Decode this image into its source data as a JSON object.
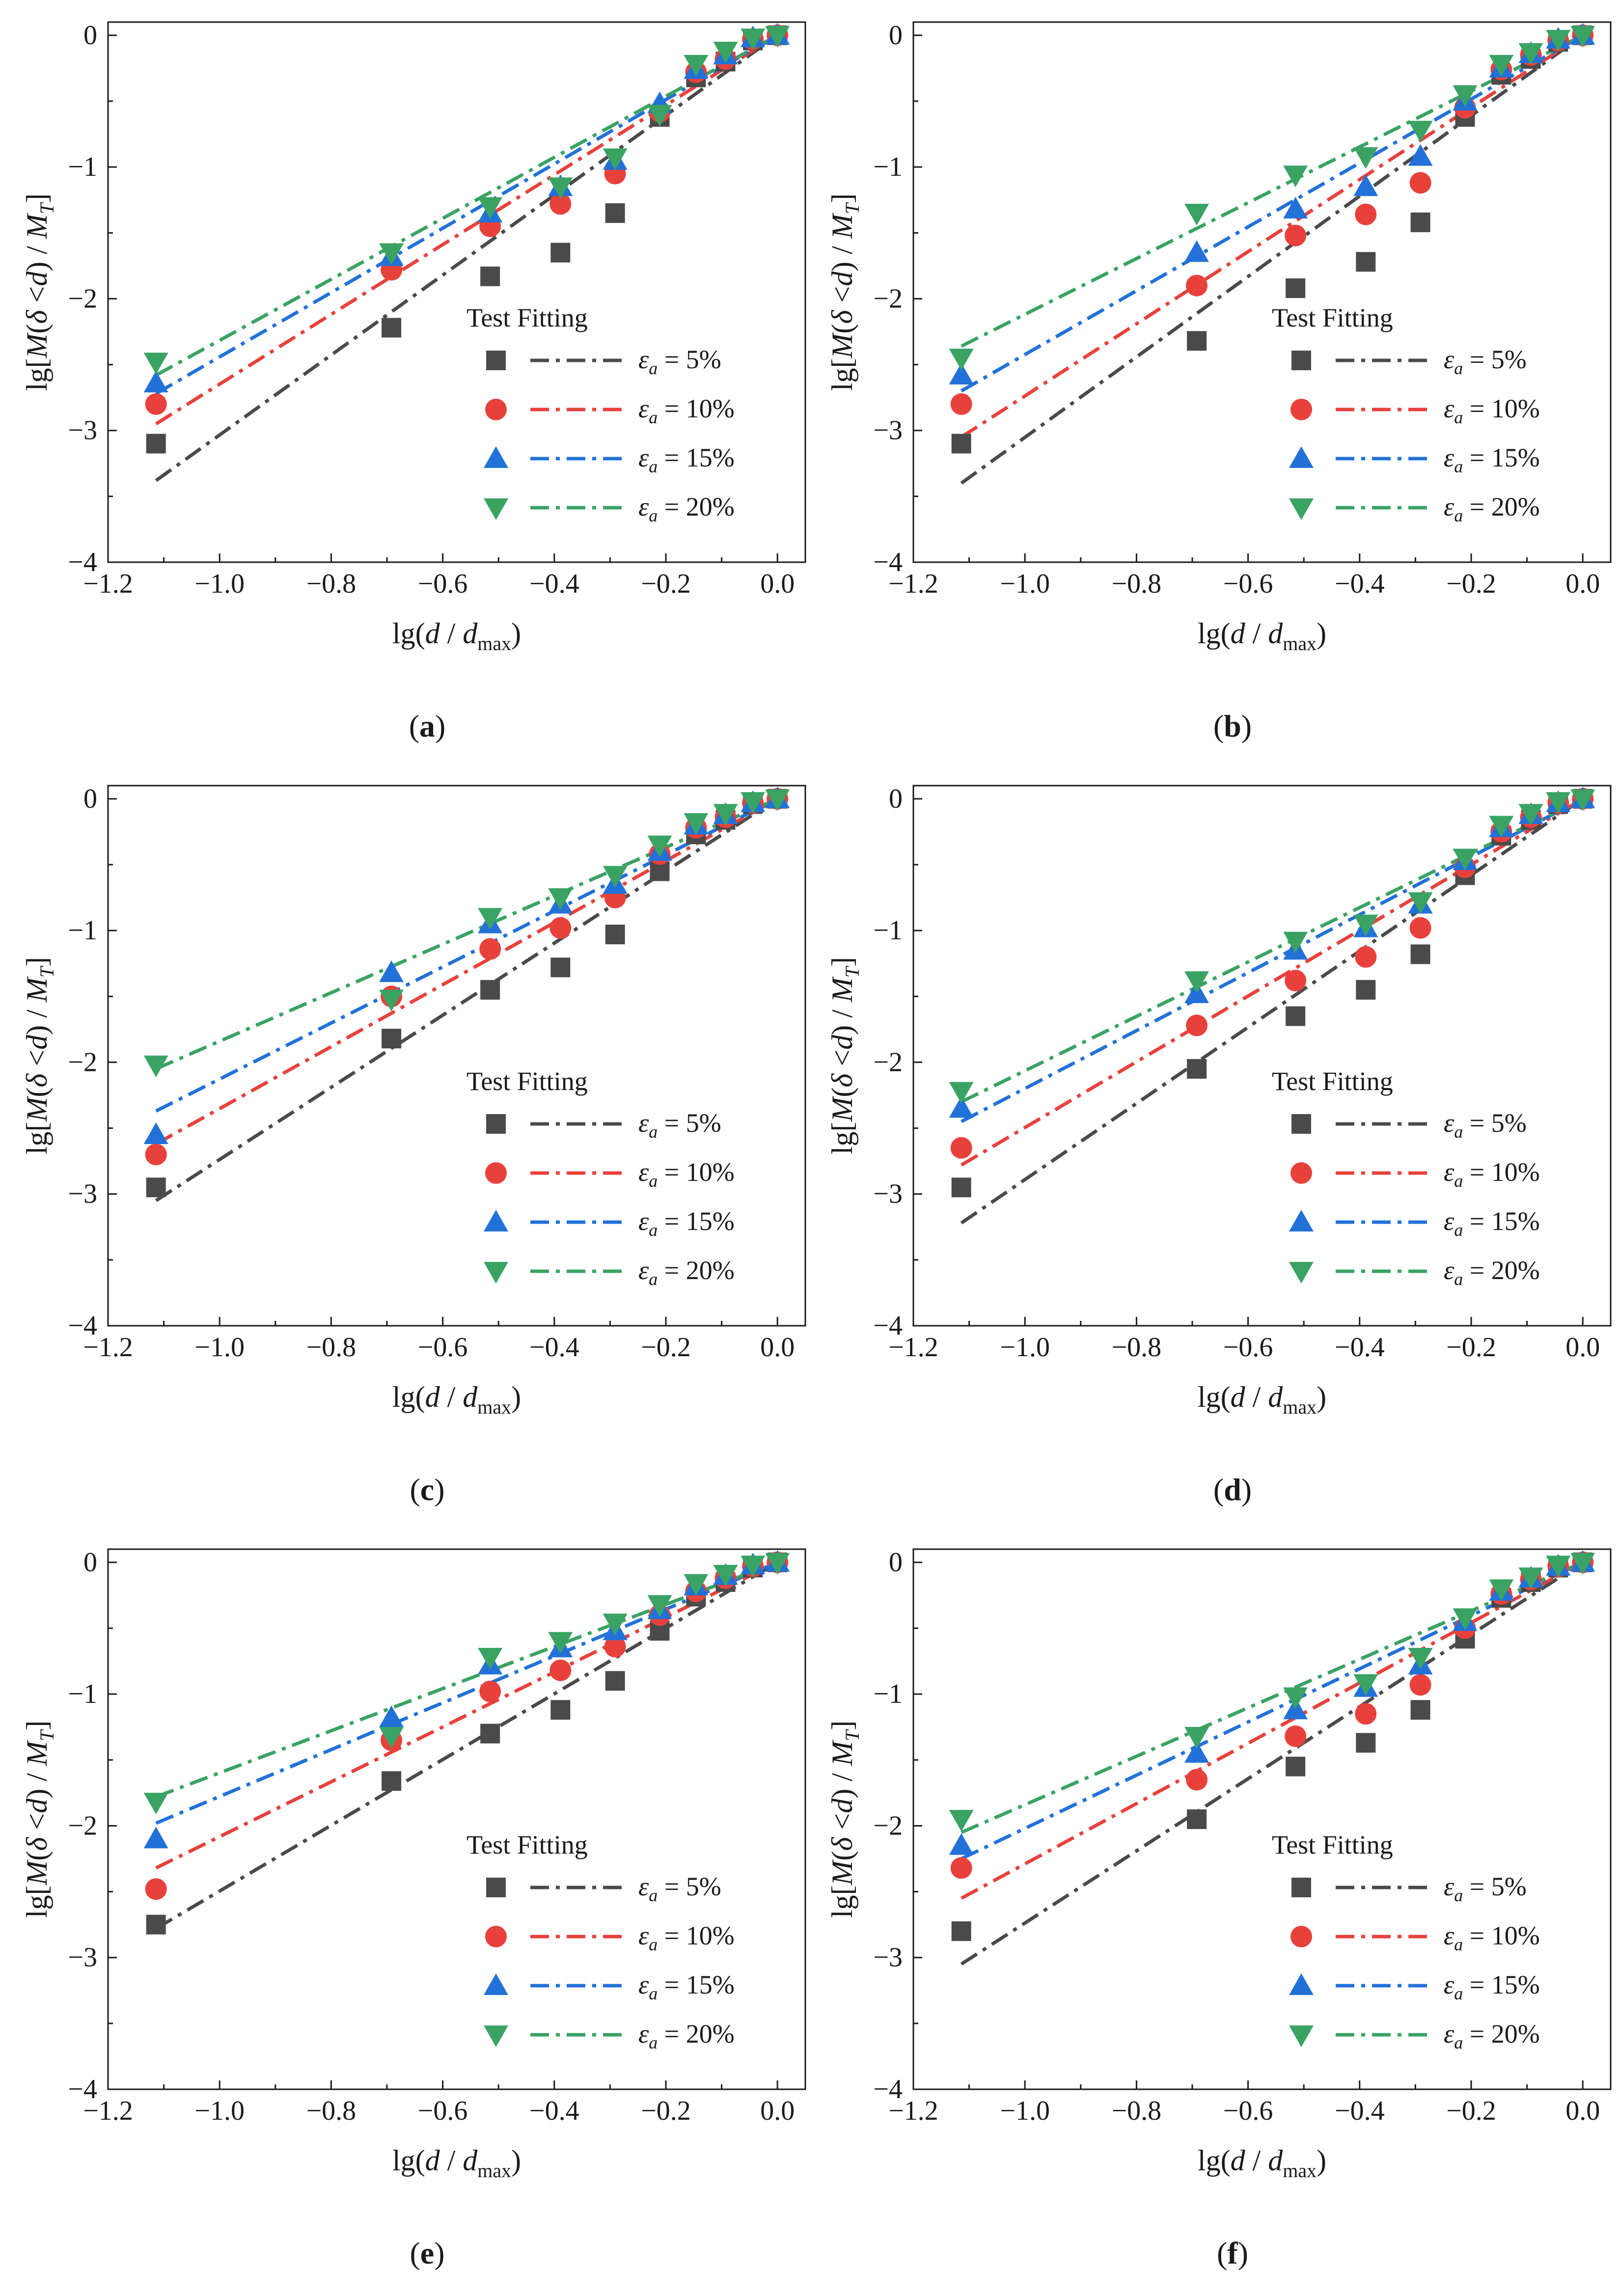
{
  "figure": {
    "fitting_header": "Test  Fitting",
    "xlabel": {
      "prefix": "lg(",
      "d": "d",
      "mid": " / ",
      "dmax": "d",
      "dmax_sub": "max",
      "suffix": ")"
    },
    "ylabel": {
      "prefix": "lg[",
      "M": "M",
      "paren_open": "(",
      "delta": "δ",
      "lt": " <",
      "d": "d",
      "paren_close": ")",
      "slash": " / ",
      "MT": "M",
      "MT_sub": "T",
      "suffix": "]"
    },
    "legend_symbol": "ε",
    "legend_symbol_sub": "a",
    "colors": {
      "5%": "#4a4a4a",
      "10%": "#e8413c",
      "15%": "#2271d8",
      "20%": "#3aa364"
    }
  },
  "chart_data": [
    {
      "type": "scatter",
      "panel": "a",
      "x": [
        -1.114,
        -0.692,
        -0.515,
        -0.389,
        -0.291,
        -0.211,
        -0.146,
        -0.093,
        -0.044,
        0.0
      ],
      "xlim": [
        -1.2,
        0.05
      ],
      "ylim": [
        -4,
        0.1
      ],
      "xticks": [
        "−1.2",
        "−1.0",
        "−0.8",
        "−0.6",
        "−0.4",
        "−0.2",
        "0.0"
      ],
      "yticks": [
        "0",
        "−1",
        "−2",
        "−3",
        "−4"
      ],
      "series": [
        {
          "name": "5%",
          "legend": " = 5%",
          "marker": "square",
          "values": [
            -3.1,
            -2.22,
            -1.83,
            -1.65,
            -1.35,
            -0.62,
            -0.32,
            -0.2,
            -0.04,
            0.0
          ],
          "fit": [
            -3.38,
            0.0
          ]
        },
        {
          "name": "10%",
          "legend": " = 10%",
          "marker": "circle",
          "values": [
            -2.8,
            -1.78,
            -1.45,
            -1.28,
            -1.05,
            -0.58,
            -0.28,
            -0.18,
            -0.03,
            0.0
          ],
          "fit": [
            -2.95,
            0.0
          ]
        },
        {
          "name": "15%",
          "legend": " = 15%",
          "marker": "triangle-up",
          "values": [
            -2.64,
            -1.68,
            -1.35,
            -1.15,
            -0.95,
            -0.52,
            -0.26,
            -0.15,
            -0.02,
            0.0
          ],
          "fit": [
            -2.72,
            0.0
          ]
        },
        {
          "name": "20%",
          "legend": " = 20%",
          "marker": "triangle-down",
          "values": [
            -2.48,
            -1.65,
            -1.3,
            -1.15,
            -0.93,
            -0.6,
            -0.22,
            -0.12,
            -0.02,
            0.0
          ],
          "fit": [
            -2.58,
            0.0
          ]
        }
      ]
    },
    {
      "type": "scatter",
      "panel": "b",
      "x": [
        -1.114,
        -0.692,
        -0.515,
        -0.389,
        -0.291,
        -0.211,
        -0.146,
        -0.093,
        -0.044,
        0.0
      ],
      "xlim": [
        -1.2,
        0.05
      ],
      "ylim": [
        -4,
        0.1
      ],
      "xticks": [
        "−1.2",
        "−1.0",
        "−0.8",
        "−0.6",
        "−0.4",
        "−0.2",
        "0.0"
      ],
      "yticks": [
        "0",
        "−1",
        "−2",
        "−3",
        "−4"
      ],
      "series": [
        {
          "name": "5%",
          "legend": " = 5%",
          "marker": "square",
          "values": [
            -3.1,
            -2.32,
            -1.92,
            -1.72,
            -1.42,
            -0.62,
            -0.3,
            -0.18,
            -0.05,
            0.0
          ],
          "fit": [
            -3.4,
            0.0
          ]
        },
        {
          "name": "10%",
          "legend": " = 10%",
          "marker": "circle",
          "values": [
            -2.8,
            -1.9,
            -1.52,
            -1.36,
            -1.12,
            -0.55,
            -0.26,
            -0.15,
            -0.04,
            0.0
          ],
          "fit": [
            -3.05,
            0.0
          ]
        },
        {
          "name": "15%",
          "legend": " = 15%",
          "marker": "triangle-up",
          "values": [
            -2.58,
            -1.65,
            -1.32,
            -1.15,
            -0.92,
            -0.5,
            -0.25,
            -0.14,
            -0.03,
            0.0
          ],
          "fit": [
            -2.7,
            0.0
          ]
        },
        {
          "name": "20%",
          "legend": " = 20%",
          "marker": "triangle-down",
          "values": [
            -2.45,
            -1.35,
            -1.06,
            -0.92,
            -0.72,
            -0.45,
            -0.22,
            -0.13,
            -0.03,
            0.0
          ],
          "fit": [
            -2.36,
            0.0
          ]
        }
      ]
    },
    {
      "type": "scatter",
      "panel": "c",
      "x": [
        -1.114,
        -0.692,
        -0.515,
        -0.389,
        -0.291,
        -0.211,
        -0.146,
        -0.093,
        -0.044,
        0.0
      ],
      "xlim": [
        -1.2,
        0.05
      ],
      "ylim": [
        -4,
        0.1
      ],
      "xticks": [
        "−1.2",
        "−1.0",
        "−0.8",
        "−0.6",
        "−0.4",
        "−0.2",
        "0.0"
      ],
      "yticks": [
        "0",
        "−1",
        "−2",
        "−3",
        "−4"
      ],
      "series": [
        {
          "name": "5%",
          "legend": " = 5%",
          "marker": "square",
          "values": [
            -2.95,
            -1.82,
            -1.45,
            -1.28,
            -1.03,
            -0.55,
            -0.27,
            -0.16,
            -0.04,
            0.0
          ],
          "fit": [
            -3.05,
            0.0
          ]
        },
        {
          "name": "10%",
          "legend": " = 10%",
          "marker": "circle",
          "values": [
            -2.7,
            -1.5,
            -1.14,
            -0.98,
            -0.75,
            -0.42,
            -0.22,
            -0.14,
            -0.03,
            0.0
          ],
          "fit": [
            -2.62,
            0.0
          ]
        },
        {
          "name": "15%",
          "legend": " = 15%",
          "marker": "triangle-up",
          "values": [
            -2.55,
            -1.32,
            -0.95,
            -0.8,
            -0.65,
            -0.4,
            -0.2,
            -0.12,
            -0.03,
            0.0
          ],
          "fit": [
            -2.37,
            0.0
          ]
        },
        {
          "name": "20%",
          "legend": " = 20%",
          "marker": "triangle-down",
          "values": [
            -2.02,
            -1.52,
            -0.9,
            -0.75,
            -0.58,
            -0.35,
            -0.18,
            -0.11,
            -0.02,
            0.0
          ],
          "fit": [
            -2.05,
            0.0
          ]
        }
      ]
    },
    {
      "type": "scatter",
      "panel": "d",
      "x": [
        -1.114,
        -0.692,
        -0.515,
        -0.389,
        -0.291,
        -0.211,
        -0.146,
        -0.093,
        -0.044,
        0.0
      ],
      "xlim": [
        -1.2,
        0.05
      ],
      "ylim": [
        -4,
        0.1
      ],
      "xticks": [
        "−1.2",
        "−1.0",
        "−0.8",
        "−0.6",
        "−0.4",
        "−0.2",
        "0.0"
      ],
      "yticks": [
        "0",
        "−1",
        "−2",
        "−3",
        "−4"
      ],
      "series": [
        {
          "name": "5%",
          "legend": " = 5%",
          "marker": "square",
          "values": [
            -2.95,
            -2.05,
            -1.65,
            -1.45,
            -1.18,
            -0.58,
            -0.28,
            -0.16,
            -0.04,
            0.0
          ],
          "fit": [
            -3.22,
            0.0
          ]
        },
        {
          "name": "10%",
          "legend": " = 10%",
          "marker": "circle",
          "values": [
            -2.65,
            -1.72,
            -1.38,
            -1.2,
            -0.98,
            -0.52,
            -0.25,
            -0.14,
            -0.03,
            0.0
          ],
          "fit": [
            -2.78,
            0.0
          ]
        },
        {
          "name": "15%",
          "legend": " = 15%",
          "marker": "triangle-up",
          "values": [
            -2.35,
            -1.48,
            -1.15,
            -0.98,
            -0.8,
            -0.47,
            -0.22,
            -0.12,
            -0.03,
            0.0
          ],
          "fit": [
            -2.45,
            0.0
          ]
        },
        {
          "name": "20%",
          "legend": " = 20%",
          "marker": "triangle-down",
          "values": [
            -2.22,
            -1.38,
            -1.08,
            -0.95,
            -0.78,
            -0.45,
            -0.2,
            -0.11,
            -0.02,
            0.0
          ],
          "fit": [
            -2.3,
            0.0
          ]
        }
      ]
    },
    {
      "type": "scatter",
      "panel": "e",
      "x": [
        -1.114,
        -0.692,
        -0.515,
        -0.389,
        -0.291,
        -0.211,
        -0.146,
        -0.093,
        -0.044,
        0.0
      ],
      "xlim": [
        -1.2,
        0.05
      ],
      "ylim": [
        -4,
        0.1
      ],
      "xticks": [
        "−1.2",
        "−1.0",
        "−0.8",
        "−0.6",
        "−0.4",
        "−0.2",
        "0.0"
      ],
      "yticks": [
        "0",
        "−1",
        "−2",
        "−3",
        "−4"
      ],
      "series": [
        {
          "name": "5%",
          "legend": " = 5%",
          "marker": "square",
          "values": [
            -2.75,
            -1.66,
            -1.3,
            -1.12,
            -0.9,
            -0.52,
            -0.26,
            -0.15,
            -0.04,
            0.0
          ],
          "fit": [
            -2.78,
            0.0
          ]
        },
        {
          "name": "10%",
          "legend": " = 10%",
          "marker": "circle",
          "values": [
            -2.48,
            -1.35,
            -0.98,
            -0.82,
            -0.64,
            -0.4,
            -0.22,
            -0.12,
            -0.03,
            0.0
          ],
          "fit": [
            -2.32,
            0.0
          ]
        },
        {
          "name": "15%",
          "legend": " = 15%",
          "marker": "triangle-up",
          "values": [
            -2.1,
            -1.18,
            -0.78,
            -0.65,
            -0.52,
            -0.36,
            -0.18,
            -0.1,
            -0.02,
            0.0
          ],
          "fit": [
            -1.98,
            0.0
          ]
        },
        {
          "name": "20%",
          "legend": " = 20%",
          "marker": "triangle-down",
          "values": [
            -1.82,
            -1.32,
            -0.72,
            -0.6,
            -0.46,
            -0.32,
            -0.16,
            -0.09,
            -0.02,
            0.0
          ],
          "fit": [
            -1.78,
            0.0
          ]
        }
      ]
    },
    {
      "type": "scatter",
      "panel": "f",
      "x": [
        -1.114,
        -0.692,
        -0.515,
        -0.389,
        -0.291,
        -0.211,
        -0.146,
        -0.093,
        -0.044,
        0.0
      ],
      "xlim": [
        -1.2,
        0.05
      ],
      "ylim": [
        -4,
        0.1
      ],
      "xticks": [
        "−1.2",
        "−1.0",
        "−0.8",
        "−0.6",
        "−0.4",
        "−0.2",
        "0.0"
      ],
      "yticks": [
        "0",
        "−1",
        "−2",
        "−3",
        "−4"
      ],
      "series": [
        {
          "name": "5%",
          "legend": " = 5%",
          "marker": "square",
          "values": [
            -2.8,
            -1.95,
            -1.55,
            -1.37,
            -1.12,
            -0.58,
            -0.27,
            -0.15,
            -0.04,
            0.0
          ],
          "fit": [
            -3.05,
            0.0
          ]
        },
        {
          "name": "10%",
          "legend": " = 10%",
          "marker": "circle",
          "values": [
            -2.32,
            -1.65,
            -1.32,
            -1.15,
            -0.93,
            -0.5,
            -0.24,
            -0.13,
            -0.03,
            0.0
          ],
          "fit": [
            -2.55,
            0.0
          ]
        },
        {
          "name": "15%",
          "legend": " = 15%",
          "marker": "triangle-up",
          "values": [
            -2.15,
            -1.45,
            -1.12,
            -0.95,
            -0.78,
            -0.45,
            -0.22,
            -0.12,
            -0.03,
            0.0
          ],
          "fit": [
            -2.25,
            0.0
          ]
        },
        {
          "name": "20%",
          "legend": " = 20%",
          "marker": "triangle-down",
          "values": [
            -1.95,
            -1.32,
            -1.02,
            -0.92,
            -0.72,
            -0.42,
            -0.2,
            -0.11,
            -0.02,
            0.0
          ],
          "fit": [
            -2.05,
            0.0
          ]
        }
      ]
    }
  ]
}
